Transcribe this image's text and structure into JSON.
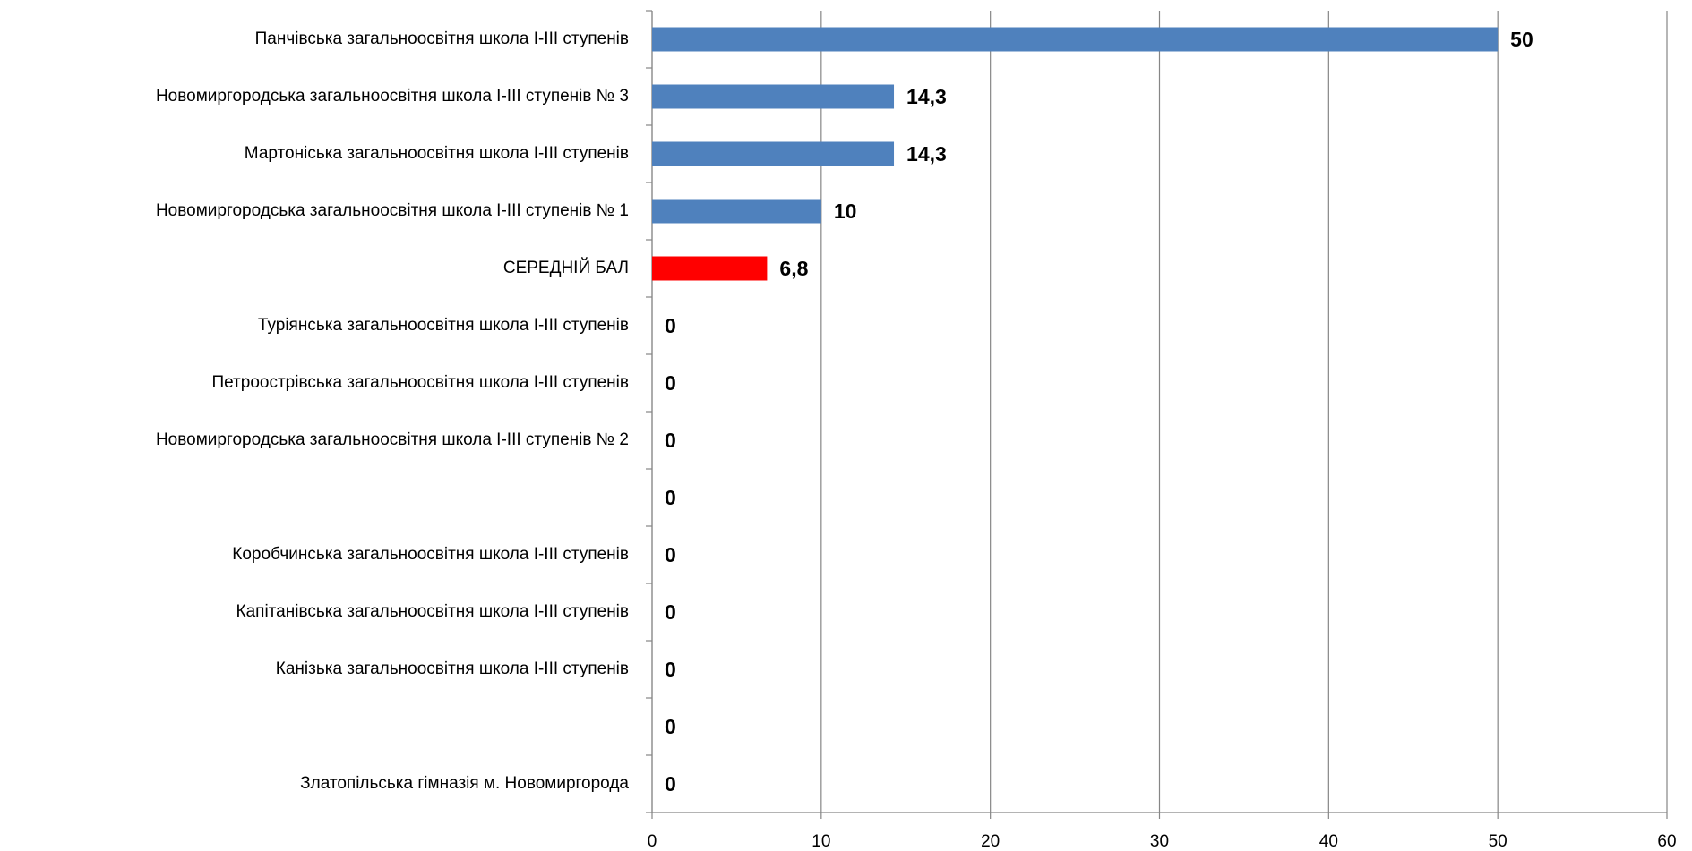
{
  "chart_data": {
    "type": "barh",
    "categories": [
      "Панчівська загальноосвітня школа І-ІІІ ступенів",
      "Новомиргородська загальноосвітня школа І-ІІІ ступенів № 3",
      "Мартоніська загальноосвітня школа І-ІІІ ступенів",
      "Новомиргородська загальноосвітня школа І-ІІІ ступенів № 1",
      "СЕРЕДНІЙ БАЛ",
      "Туріянська загальноосвітня школа І-ІІІ ступенів",
      "Петроострівська загальноосвітня школа І-ІІІ ступенів",
      "Новомиргородська загальноосвітня школа І-ІІІ ступенів № 2",
      null,
      "Коробчинська загальноосвітня школа І-ІІІ ступенів",
      "Капітанівська загальноосвітня школа І-ІІІ ступенів",
      "Канізька загальноосвітня школа І-ІІІ ступенів",
      null,
      "Златопільська гімназія м. Новомиргорода"
    ],
    "values": [
      50,
      14.3,
      14.3,
      10,
      6.8,
      0,
      0,
      0,
      0,
      0,
      0,
      0,
      0,
      0
    ],
    "value_labels": [
      "50",
      "14,3",
      "14,3",
      "10",
      "6,8",
      "0",
      "0",
      "0",
      "0",
      "0",
      "0",
      "0",
      "0",
      "0"
    ],
    "colors": [
      "#4f81bd",
      "#4f81bd",
      "#4f81bd",
      "#4f81bd",
      "#ff0000",
      "#4f81bd",
      "#4f81bd",
      "#4f81bd",
      "#4f81bd",
      "#4f81bd",
      "#4f81bd",
      "#4f81bd",
      "#4f81bd",
      "#4f81bd"
    ],
    "xlim": [
      0,
      60
    ],
    "xticks": [
      0,
      10,
      20,
      30,
      40,
      50,
      60
    ],
    "grid": true
  }
}
